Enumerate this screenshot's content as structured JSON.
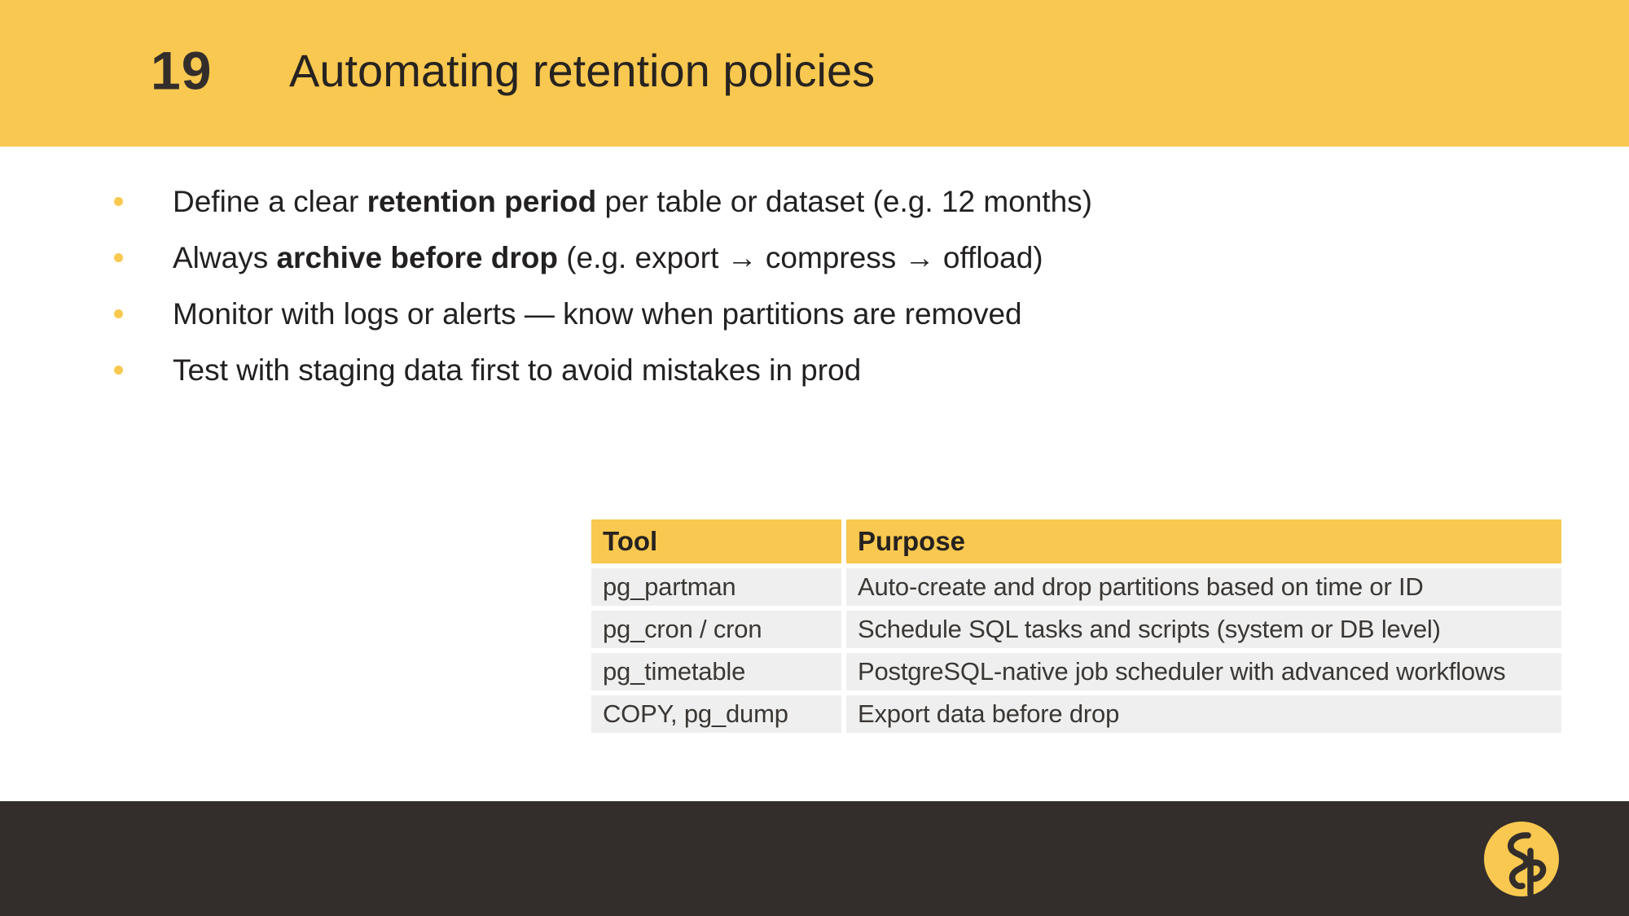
{
  "colors": {
    "header_bg": "#F9C850",
    "bullet_dot": "#F9C850",
    "table_header_bg": "#F9C850",
    "row_bg": "#EFEFEF",
    "footer_bg": "#332E2B",
    "logo_bg": "#F9C850",
    "text": "#232020"
  },
  "header": {
    "slide_number": "19",
    "title": "Automating retention policies"
  },
  "bullets": [
    {
      "segments": [
        {
          "text": "Define a clear ",
          "bold": false
        },
        {
          "text": "retention period",
          "bold": true
        },
        {
          "text": " per table or dataset (e.g. 12 months)",
          "bold": false
        }
      ]
    },
    {
      "segments": [
        {
          "text": "Always ",
          "bold": false
        },
        {
          "text": "archive before drop",
          "bold": true
        },
        {
          "text": " (e.g. export → compress → offload)",
          "bold": false
        }
      ]
    },
    {
      "segments": [
        {
          "text": "Monitor with logs or alerts — know when partitions are removed",
          "bold": false
        }
      ]
    },
    {
      "segments": [
        {
          "text": "Test with staging data first to avoid mistakes in prod",
          "bold": false
        }
      ]
    }
  ],
  "table": {
    "columns": [
      "Tool",
      "Purpose"
    ],
    "rows": [
      [
        "pg_partman",
        "Auto-create and drop partitions based on time or ID"
      ],
      [
        "pg_cron / cron",
        "Schedule SQL tasks and scripts (system or DB level)"
      ],
      [
        "pg_timetable",
        "PostgreSQL-native job scheduler with advanced workflows"
      ],
      [
        "COPY, pg_dump",
        "Export data before drop"
      ]
    ]
  },
  "footer": {
    "logo_icon": "flamingo-logo"
  }
}
